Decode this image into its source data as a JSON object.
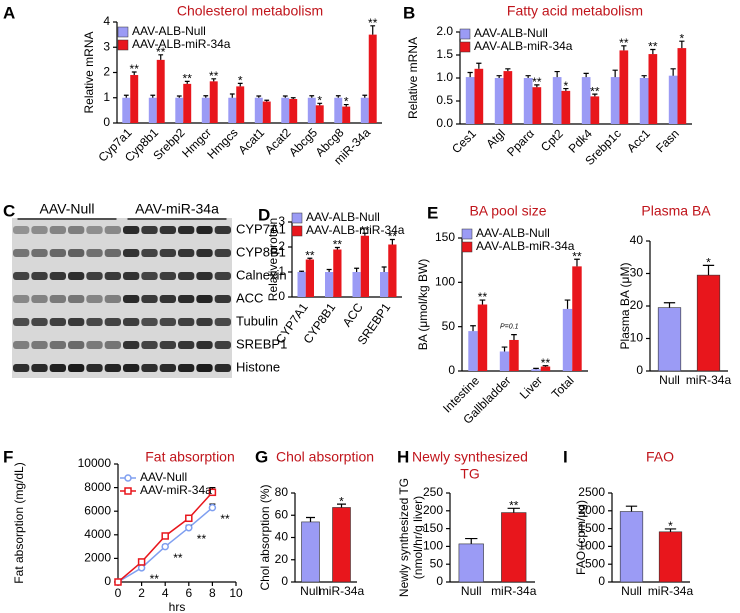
{
  "chart_data": [
    {
      "type": "bar",
      "panel": "A",
      "title": "Cholesterol metabolism",
      "ylabel": "Relative mRNA",
      "categories": [
        "Cyp7a1",
        "Cyp8b1",
        "Srebp2",
        "Hmgcr",
        "Hmgcs",
        "Acat1",
        "Acat2",
        "Abcg5",
        "Abcg8",
        "miR-34a"
      ],
      "series": [
        {
          "name": "AAV-ALB-Null",
          "color": "#9b9bf5",
          "values": [
            1,
            1,
            1,
            1,
            1,
            1,
            1,
            1,
            1,
            1
          ],
          "errors": [
            0.1,
            0.1,
            0.07,
            0.08,
            0.15,
            0.07,
            0.07,
            0.08,
            0.08,
            0.1
          ]
        },
        {
          "name": "AAV-ALB-miR-34a",
          "color": "#e8161c",
          "values": [
            1.9,
            2.5,
            1.55,
            1.65,
            1.45,
            0.85,
            0.95,
            0.7,
            0.65,
            3.5
          ],
          "errors": [
            0.12,
            0.2,
            0.1,
            0.1,
            0.12,
            0.05,
            0.05,
            0.08,
            0.08,
            0.35
          ]
        }
      ],
      "significance": [
        "**",
        "**",
        "**",
        "**",
        "*",
        null,
        null,
        "*",
        "*",
        "**"
      ],
      "ylim": [
        0,
        4
      ],
      "yticks": [
        0,
        1,
        2,
        3,
        4
      ]
    },
    {
      "type": "bar",
      "panel": "B",
      "title": "Fatty acid metabolism",
      "ylabel": "Relative mRNA",
      "categories": [
        "Ces1",
        "Atgl",
        "Pparα",
        "Cpt2",
        "Pdk4",
        "Srebp1c",
        "Acc1",
        "Fasn"
      ],
      "series": [
        {
          "name": "AAV-ALB-Null",
          "color": "#9b9bf5",
          "values": [
            1.02,
            1.0,
            1.0,
            1.02,
            1.02,
            1.02,
            1.0,
            1.05
          ],
          "errors": [
            0.1,
            0.05,
            0.05,
            0.12,
            0.08,
            0.15,
            0.05,
            0.15
          ]
        },
        {
          "name": "AAV-ALB-miR-34a",
          "color": "#e8161c",
          "values": [
            1.2,
            1.15,
            0.8,
            0.72,
            0.6,
            1.6,
            1.52,
            1.65
          ],
          "errors": [
            0.12,
            0.05,
            0.05,
            0.05,
            0.05,
            0.1,
            0.1,
            0.15
          ]
        }
      ],
      "significance": [
        null,
        null,
        "**",
        "*",
        "**",
        "**",
        "**",
        "*"
      ],
      "ylim": [
        0,
        2
      ],
      "yticks": [
        {
          "value": 0,
          "label": "0.0"
        },
        0.5,
        {
          "value": 1,
          "label": "1.0"
        },
        1.5,
        {
          "value": 2,
          "label": "2.0"
        }
      ]
    },
    {
      "type": "blot",
      "panel": "C",
      "groups": [
        "AAV-Null",
        "AAV-miR-34a"
      ],
      "bands": [
        "CYP7A1",
        "CYP8B1",
        "Calnexin",
        "ACC",
        "Tubulin",
        "SREBP1",
        "Histone"
      ]
    },
    {
      "type": "bar",
      "panel": "D",
      "ylabel": "Relative protein",
      "categories": [
        "CYP7A1",
        "CYP8B1",
        "ACC",
        "SREBP1"
      ],
      "series": [
        {
          "name": "AAV-ALB-Null",
          "color": "#9b9bf5",
          "values": [
            1.0,
            1.0,
            1.0,
            1.0
          ],
          "errors": [
            0.03,
            0.1,
            0.15,
            0.2
          ]
        },
        {
          "name": "AAV-ALB-miR-34a",
          "color": "#e8161c",
          "values": [
            1.5,
            1.9,
            2.45,
            2.1
          ],
          "errors": [
            0.05,
            0.08,
            0.1,
            0.2
          ]
        }
      ],
      "significance": [
        "**",
        "**",
        "**",
        "**"
      ],
      "ylim": [
        0,
        3
      ],
      "yticks": [
        0,
        1,
        2,
        3
      ]
    },
    {
      "type": "bar",
      "panel": "E",
      "title": "BA pool size",
      "ylabel": "BA (μmol/kg BW)",
      "categories": [
        "Intestine",
        "Gallbladder",
        "Liver",
        "Total"
      ],
      "series": [
        {
          "name": "AAV-ALB-Null",
          "color": "#9b9bf5",
          "values": [
            45,
            22,
            2,
            70
          ],
          "errors": [
            6,
            5,
            1,
            10
          ]
        },
        {
          "name": "AAV-ALB-miR-34a",
          "color": "#e8161c",
          "values": [
            75,
            35,
            5,
            118
          ],
          "errors": [
            5,
            6,
            1,
            8
          ]
        }
      ],
      "significance": [
        "**",
        "P=0.1",
        "**",
        "**"
      ],
      "ylim": [
        0,
        150
      ],
      "yticks": [
        0,
        50,
        100,
        150
      ]
    },
    {
      "type": "bar",
      "title": "Plasma BA",
      "ylabel": "Plasma BA (μM)",
      "categories": [
        "Null",
        "miR-34a"
      ],
      "values": [
        19.5,
        29.5
      ],
      "errors": [
        1.5,
        3
      ],
      "colors": [
        "#9b9bf5",
        "#e8161c"
      ],
      "significance": [
        null,
        "*"
      ],
      "ylim": [
        0,
        40
      ],
      "yticks": [
        0,
        10,
        20,
        30,
        40
      ]
    },
    {
      "type": "line",
      "panel": "F",
      "title": "Fat absorption",
      "ylabel": "Fat absorption (mg/dL)",
      "xlabel": "hrs",
      "x": [
        0,
        2,
        4,
        6,
        8
      ],
      "series": [
        {
          "name": "AAV-Null",
          "color": "#7f9ff0",
          "values": [
            0,
            1200,
            3000,
            4600,
            6300
          ],
          "errors": [
            0,
            150,
            150,
            200,
            300
          ]
        },
        {
          "name": "AAV-miR-34a",
          "color": "#e8161c",
          "values": [
            0,
            1700,
            3900,
            5400,
            7600
          ],
          "errors": [
            0,
            150,
            150,
            200,
            400
          ]
        }
      ],
      "significance": [
        null,
        "**",
        "**",
        "**",
        "**"
      ],
      "xlim": [
        0,
        10
      ],
      "xticks": [
        0,
        2,
        4,
        6,
        8,
        10
      ],
      "ylim": [
        0,
        10000
      ],
      "yticks": [
        0,
        2000,
        4000,
        6000,
        8000,
        10000
      ]
    },
    {
      "type": "bar",
      "panel": "G",
      "title": "Chol absorption",
      "ylabel": "Chol absorption (%)",
      "categories": [
        "Null",
        "miR-34a"
      ],
      "values": [
        54,
        67
      ],
      "errors": [
        4,
        3
      ],
      "colors": [
        "#9b9bf5",
        "#e8161c"
      ],
      "significance": [
        null,
        "*"
      ],
      "ylim": [
        0,
        80
      ],
      "yticks": [
        0,
        20,
        40,
        60,
        80
      ]
    },
    {
      "type": "bar",
      "panel": "H",
      "title": [
        "Newly synthesized",
        "TG"
      ],
      "ylabel": [
        "Newly synthesized TG",
        "(nmol/hr/g liver)"
      ],
      "categories": [
        "Null",
        "miR-34a"
      ],
      "values": [
        107,
        195
      ],
      "errors": [
        15,
        12
      ],
      "colors": [
        "#9b9bf5",
        "#e8161c"
      ],
      "significance": [
        null,
        "**"
      ],
      "ylim": [
        0,
        250
      ],
      "yticks": [
        0,
        50,
        100,
        150,
        200,
        250
      ]
    },
    {
      "type": "bar",
      "panel": "I",
      "title": "FAO",
      "ylabel": "FAO (cpm/μg)",
      "categories": [
        "Null",
        "miR-34a"
      ],
      "values": [
        1980,
        1410
      ],
      "errors": [
        150,
        80
      ],
      "colors": [
        "#9b9bf5",
        "#e8161c"
      ],
      "significance": [
        null,
        "*"
      ],
      "ylim": [
        0,
        2500
      ],
      "yticks": [
        0,
        500,
        1000,
        1500,
        2000,
        2500
      ]
    }
  ]
}
